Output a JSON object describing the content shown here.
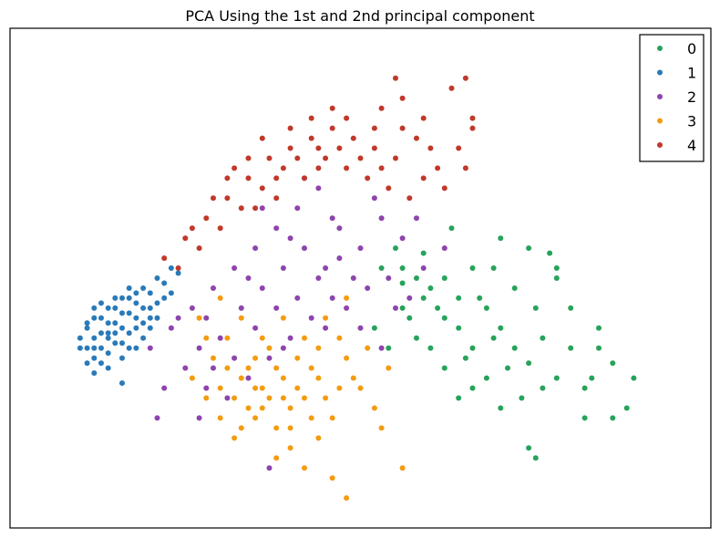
{
  "chart_data": {
    "type": "scatter",
    "title": "PCA Using the 1st and 2nd principal component",
    "xlabel": "",
    "ylabel": "",
    "xlim": [
      0,
      1
    ],
    "ylim": [
      0,
      1
    ],
    "ticks_visible": false,
    "grid": false,
    "legend_position": "top-right",
    "series": [
      {
        "name": "0",
        "color": "#27a35a",
        "points": [
          [
            0.53,
            0.52
          ],
          [
            0.56,
            0.49
          ],
          [
            0.59,
            0.55
          ],
          [
            0.62,
            0.42
          ],
          [
            0.64,
            0.46
          ],
          [
            0.66,
            0.36
          ],
          [
            0.68,
            0.44
          ],
          [
            0.7,
            0.4
          ],
          [
            0.72,
            0.48
          ],
          [
            0.74,
            0.33
          ],
          [
            0.76,
            0.38
          ],
          [
            0.78,
            0.3
          ],
          [
            0.8,
            0.36
          ],
          [
            0.82,
            0.28
          ],
          [
            0.84,
            0.4
          ],
          [
            0.86,
            0.33
          ],
          [
            0.78,
            0.5
          ],
          [
            0.74,
            0.56
          ],
          [
            0.7,
            0.58
          ],
          [
            0.66,
            0.52
          ],
          [
            0.6,
            0.48
          ],
          [
            0.56,
            0.44
          ],
          [
            0.52,
            0.4
          ],
          [
            0.54,
            0.36
          ],
          [
            0.58,
            0.38
          ],
          [
            0.62,
            0.32
          ],
          [
            0.66,
            0.28
          ],
          [
            0.7,
            0.24
          ],
          [
            0.74,
            0.16
          ],
          [
            0.82,
            0.22
          ],
          [
            0.89,
            0.3
          ],
          [
            0.86,
            0.22
          ],
          [
            0.78,
            0.52
          ],
          [
            0.69,
            0.52
          ],
          [
            0.63,
            0.6
          ],
          [
            0.6,
            0.36
          ],
          [
            0.67,
            0.46
          ],
          [
            0.71,
            0.32
          ],
          [
            0.75,
            0.44
          ],
          [
            0.64,
            0.4
          ],
          [
            0.58,
            0.5
          ],
          [
            0.55,
            0.56
          ],
          [
            0.8,
            0.44
          ],
          [
            0.73,
            0.26
          ],
          [
            0.83,
            0.3
          ],
          [
            0.61,
            0.44
          ],
          [
            0.65,
            0.34
          ],
          [
            0.69,
            0.38
          ],
          [
            0.72,
            0.36
          ],
          [
            0.76,
            0.28
          ],
          [
            0.57,
            0.42
          ],
          [
            0.62,
            0.5
          ],
          [
            0.88,
            0.24
          ],
          [
            0.75,
            0.14
          ],
          [
            0.77,
            0.55
          ],
          [
            0.68,
            0.3
          ],
          [
            0.64,
            0.26
          ],
          [
            0.56,
            0.52
          ],
          [
            0.59,
            0.46
          ],
          [
            0.84,
            0.36
          ]
        ]
      },
      {
        "name": "1",
        "color": "#2a7ab8",
        "points": [
          [
            0.1,
            0.36
          ],
          [
            0.11,
            0.4
          ],
          [
            0.12,
            0.34
          ],
          [
            0.13,
            0.42
          ],
          [
            0.14,
            0.38
          ],
          [
            0.15,
            0.44
          ],
          [
            0.16,
            0.4
          ],
          [
            0.17,
            0.46
          ],
          [
            0.18,
            0.42
          ],
          [
            0.19,
            0.48
          ],
          [
            0.2,
            0.44
          ],
          [
            0.21,
            0.5
          ],
          [
            0.22,
            0.46
          ],
          [
            0.23,
            0.52
          ],
          [
            0.12,
            0.38
          ],
          [
            0.13,
            0.36
          ],
          [
            0.14,
            0.41
          ],
          [
            0.15,
            0.37
          ],
          [
            0.16,
            0.43
          ],
          [
            0.17,
            0.39
          ],
          [
            0.18,
            0.45
          ],
          [
            0.11,
            0.33
          ],
          [
            0.12,
            0.31
          ],
          [
            0.13,
            0.39
          ],
          [
            0.14,
            0.35
          ],
          [
            0.15,
            0.41
          ],
          [
            0.16,
            0.37
          ],
          [
            0.17,
            0.43
          ],
          [
            0.19,
            0.41
          ],
          [
            0.2,
            0.47
          ],
          [
            0.1,
            0.38
          ],
          [
            0.11,
            0.36
          ],
          [
            0.12,
            0.42
          ],
          [
            0.14,
            0.44
          ],
          [
            0.16,
            0.46
          ],
          [
            0.18,
            0.4
          ],
          [
            0.2,
            0.42
          ],
          [
            0.22,
            0.49
          ],
          [
            0.24,
            0.51
          ],
          [
            0.15,
            0.39
          ],
          [
            0.13,
            0.33
          ],
          [
            0.11,
            0.41
          ],
          [
            0.17,
            0.36
          ],
          [
            0.19,
            0.44
          ],
          [
            0.21,
            0.45
          ],
          [
            0.16,
            0.29
          ],
          [
            0.13,
            0.45
          ],
          [
            0.18,
            0.47
          ],
          [
            0.14,
            0.32
          ],
          [
            0.2,
            0.4
          ],
          [
            0.12,
            0.44
          ],
          [
            0.15,
            0.46
          ],
          [
            0.17,
            0.48
          ],
          [
            0.19,
            0.38
          ],
          [
            0.23,
            0.47
          ],
          [
            0.21,
            0.42
          ],
          [
            0.16,
            0.34
          ],
          [
            0.14,
            0.39
          ],
          [
            0.18,
            0.36
          ],
          [
            0.12,
            0.36
          ]
        ]
      },
      {
        "name": "2",
        "color": "#8e44ad",
        "points": [
          [
            0.2,
            0.36
          ],
          [
            0.23,
            0.4
          ],
          [
            0.26,
            0.44
          ],
          [
            0.29,
            0.48
          ],
          [
            0.32,
            0.52
          ],
          [
            0.35,
            0.56
          ],
          [
            0.38,
            0.6
          ],
          [
            0.41,
            0.64
          ],
          [
            0.44,
            0.68
          ],
          [
            0.47,
            0.6
          ],
          [
            0.5,
            0.56
          ],
          [
            0.53,
            0.62
          ],
          [
            0.56,
            0.58
          ],
          [
            0.49,
            0.5
          ],
          [
            0.46,
            0.46
          ],
          [
            0.43,
            0.42
          ],
          [
            0.4,
            0.38
          ],
          [
            0.37,
            0.34
          ],
          [
            0.34,
            0.3
          ],
          [
            0.31,
            0.26
          ],
          [
            0.28,
            0.28
          ],
          [
            0.25,
            0.32
          ],
          [
            0.22,
            0.28
          ],
          [
            0.3,
            0.38
          ],
          [
            0.33,
            0.44
          ],
          [
            0.36,
            0.48
          ],
          [
            0.39,
            0.52
          ],
          [
            0.42,
            0.56
          ],
          [
            0.45,
            0.52
          ],
          [
            0.48,
            0.44
          ],
          [
            0.51,
            0.48
          ],
          [
            0.54,
            0.5
          ],
          [
            0.57,
            0.46
          ],
          [
            0.59,
            0.52
          ],
          [
            0.62,
            0.56
          ],
          [
            0.35,
            0.4
          ],
          [
            0.27,
            0.36
          ],
          [
            0.24,
            0.42
          ],
          [
            0.32,
            0.34
          ],
          [
            0.38,
            0.44
          ],
          [
            0.44,
            0.5
          ],
          [
            0.5,
            0.4
          ],
          [
            0.55,
            0.44
          ],
          [
            0.41,
            0.46
          ],
          [
            0.47,
            0.54
          ],
          [
            0.53,
            0.36
          ],
          [
            0.36,
            0.64
          ],
          [
            0.42,
            0.7
          ],
          [
            0.28,
            0.42
          ],
          [
            0.4,
            0.58
          ],
          [
            0.46,
            0.62
          ],
          [
            0.52,
            0.66
          ],
          [
            0.34,
            0.5
          ],
          [
            0.29,
            0.32
          ],
          [
            0.58,
            0.62
          ],
          [
            0.37,
            0.12
          ],
          [
            0.21,
            0.22
          ],
          [
            0.27,
            0.22
          ],
          [
            0.45,
            0.4
          ],
          [
            0.39,
            0.36
          ]
        ]
      },
      {
        "name": "3",
        "color": "#f39c12",
        "points": [
          [
            0.26,
            0.3
          ],
          [
            0.28,
            0.26
          ],
          [
            0.3,
            0.22
          ],
          [
            0.32,
            0.18
          ],
          [
            0.34,
            0.24
          ],
          [
            0.36,
            0.28
          ],
          [
            0.38,
            0.2
          ],
          [
            0.4,
            0.16
          ],
          [
            0.42,
            0.26
          ],
          [
            0.44,
            0.3
          ],
          [
            0.46,
            0.22
          ],
          [
            0.48,
            0.34
          ],
          [
            0.5,
            0.28
          ],
          [
            0.52,
            0.24
          ],
          [
            0.54,
            0.32
          ],
          [
            0.29,
            0.34
          ],
          [
            0.31,
            0.38
          ],
          [
            0.33,
            0.3
          ],
          [
            0.35,
            0.34
          ],
          [
            0.37,
            0.26
          ],
          [
            0.39,
            0.3
          ],
          [
            0.41,
            0.34
          ],
          [
            0.43,
            0.22
          ],
          [
            0.45,
            0.26
          ],
          [
            0.47,
            0.38
          ],
          [
            0.27,
            0.42
          ],
          [
            0.3,
            0.46
          ],
          [
            0.33,
            0.42
          ],
          [
            0.36,
            0.38
          ],
          [
            0.39,
            0.42
          ],
          [
            0.42,
            0.38
          ],
          [
            0.45,
            0.42
          ],
          [
            0.48,
            0.46
          ],
          [
            0.3,
            0.28
          ],
          [
            0.35,
            0.22
          ],
          [
            0.4,
            0.24
          ],
          [
            0.44,
            0.18
          ],
          [
            0.38,
            0.14
          ],
          [
            0.42,
            0.12
          ],
          [
            0.46,
            0.1
          ],
          [
            0.48,
            0.06
          ],
          [
            0.56,
            0.12
          ],
          [
            0.53,
            0.2
          ],
          [
            0.34,
            0.32
          ],
          [
            0.32,
            0.26
          ],
          [
            0.37,
            0.36
          ],
          [
            0.41,
            0.28
          ],
          [
            0.43,
            0.32
          ],
          [
            0.31,
            0.32
          ],
          [
            0.36,
            0.24
          ],
          [
            0.39,
            0.26
          ],
          [
            0.44,
            0.36
          ],
          [
            0.28,
            0.38
          ],
          [
            0.33,
            0.2
          ],
          [
            0.49,
            0.3
          ],
          [
            0.51,
            0.36
          ],
          [
            0.35,
            0.28
          ],
          [
            0.38,
            0.32
          ],
          [
            0.4,
            0.2
          ],
          [
            0.47,
            0.28
          ]
        ]
      },
      {
        "name": "4",
        "color": "#c0392b",
        "points": [
          [
            0.22,
            0.54
          ],
          [
            0.25,
            0.58
          ],
          [
            0.28,
            0.62
          ],
          [
            0.31,
            0.66
          ],
          [
            0.34,
            0.7
          ],
          [
            0.37,
            0.74
          ],
          [
            0.4,
            0.76
          ],
          [
            0.43,
            0.78
          ],
          [
            0.46,
            0.8
          ],
          [
            0.49,
            0.78
          ],
          [
            0.52,
            0.76
          ],
          [
            0.55,
            0.74
          ],
          [
            0.58,
            0.78
          ],
          [
            0.61,
            0.72
          ],
          [
            0.64,
            0.76
          ],
          [
            0.3,
            0.6
          ],
          [
            0.33,
            0.64
          ],
          [
            0.36,
            0.68
          ],
          [
            0.39,
            0.72
          ],
          [
            0.42,
            0.7
          ],
          [
            0.45,
            0.74
          ],
          [
            0.48,
            0.72
          ],
          [
            0.51,
            0.7
          ],
          [
            0.54,
            0.68
          ],
          [
            0.57,
            0.66
          ],
          [
            0.27,
            0.56
          ],
          [
            0.24,
            0.52
          ],
          [
            0.29,
            0.66
          ],
          [
            0.32,
            0.72
          ],
          [
            0.35,
            0.64
          ],
          [
            0.38,
            0.66
          ],
          [
            0.41,
            0.74
          ],
          [
            0.44,
            0.72
          ],
          [
            0.47,
            0.76
          ],
          [
            0.5,
            0.74
          ],
          [
            0.53,
            0.72
          ],
          [
            0.56,
            0.8
          ],
          [
            0.59,
            0.7
          ],
          [
            0.62,
            0.68
          ],
          [
            0.65,
            0.72
          ],
          [
            0.66,
            0.8
          ],
          [
            0.53,
            0.84
          ],
          [
            0.56,
            0.86
          ],
          [
            0.59,
            0.82
          ],
          [
            0.63,
            0.88
          ],
          [
            0.65,
            0.9
          ],
          [
            0.55,
            0.9
          ],
          [
            0.46,
            0.84
          ],
          [
            0.43,
            0.82
          ],
          [
            0.36,
            0.78
          ],
          [
            0.31,
            0.7
          ],
          [
            0.26,
            0.6
          ],
          [
            0.34,
            0.74
          ],
          [
            0.4,
            0.8
          ],
          [
            0.48,
            0.82
          ],
          [
            0.6,
            0.76
          ],
          [
            0.66,
            0.82
          ],
          [
            0.52,
            0.8
          ],
          [
            0.44,
            0.76
          ],
          [
            0.38,
            0.7
          ]
        ]
      }
    ]
  }
}
